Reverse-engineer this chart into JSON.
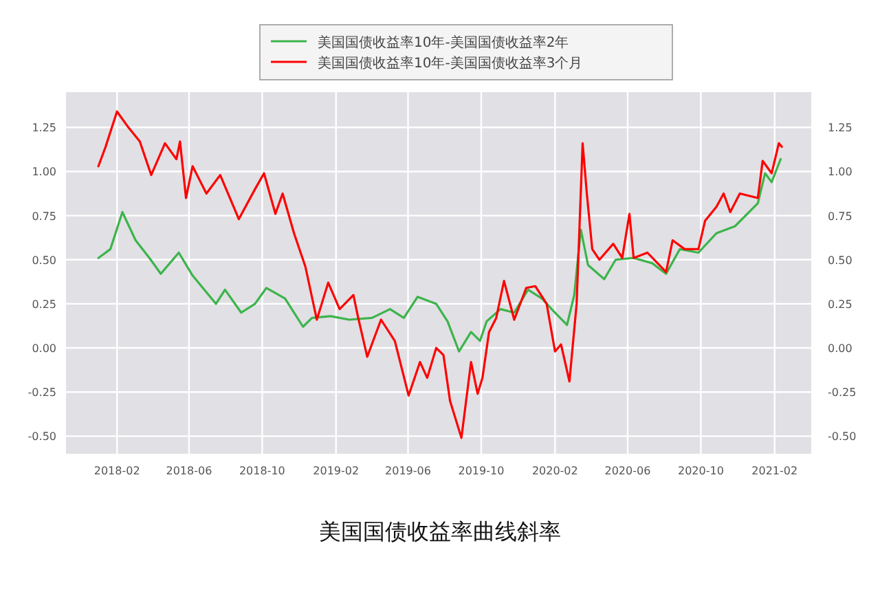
{
  "chart_data": {
    "type": "line",
    "title": "美国国债收益率曲线斜率",
    "legend": "top",
    "grid": true,
    "xlim": [
      "2017-11-08",
      "2021-04-03"
    ],
    "xticks": [
      "2018-02",
      "2018-06",
      "2018-10",
      "2019-02",
      "2019-06",
      "2019-10",
      "2020-02",
      "2020-06",
      "2020-10",
      "2021-02"
    ],
    "ylim": [
      -0.6,
      1.45
    ],
    "yticks": [
      {
        "value": -0.5,
        "label": "-0.50"
      },
      {
        "value": -0.25,
        "label": "-0.25"
      },
      {
        "value": 0,
        "label": "0.00"
      },
      {
        "value": 0.25,
        "label": "0.25"
      },
      {
        "value": 0.5,
        "label": "0.50"
      },
      {
        "value": 0.75,
        "label": "0.75"
      },
      {
        "value": 1,
        "label": "1.00"
      },
      {
        "value": 1.25,
        "label": "1.25"
      }
    ],
    "y2lim": [
      -0.6,
      1.45
    ],
    "y2ticks": [
      {
        "value": -0.5,
        "label": "-0.50"
      },
      {
        "value": -0.25,
        "label": "-0.25"
      },
      {
        "value": 0,
        "label": "0.00"
      },
      {
        "value": 0.25,
        "label": "0.25"
      },
      {
        "value": 0.5,
        "label": "0.50"
      },
      {
        "value": 0.75,
        "label": "0.75"
      },
      {
        "value": 1,
        "label": "1.00"
      },
      {
        "value": 1.25,
        "label": "1.25"
      }
    ],
    "series": [
      {
        "name": "美国国债收益率10年-美国国债收益率2年",
        "color": "#3cb44b",
        "x": [
          "2018-01-01",
          "2018-01-21",
          "2018-02-10",
          "2018-03-04",
          "2018-03-27",
          "2018-04-15",
          "2018-05-15",
          "2018-06-07",
          "2018-07-16",
          "2018-07-31",
          "2018-08-27",
          "2018-09-19",
          "2018-10-08",
          "2018-11-08",
          "2018-12-08",
          "2018-12-23",
          "2019-01-23",
          "2019-02-23",
          "2019-04-02",
          "2019-05-02",
          "2019-05-25",
          "2019-06-17",
          "2019-07-18",
          "2019-08-06",
          "2019-08-25",
          "2019-09-14",
          "2019-09-29",
          "2019-10-10",
          "2019-11-02",
          "2019-11-25",
          "2019-12-18",
          "2020-01-10",
          "2020-01-29",
          "2020-02-21",
          "2020-03-04",
          "2020-03-15",
          "2020-03-27",
          "2020-04-23",
          "2020-05-12",
          "2020-06-11",
          "2020-07-12",
          "2020-08-04",
          "2020-08-27",
          "2020-09-27",
          "2020-10-27",
          "2020-11-27",
          "2021-01-04",
          "2021-01-16",
          "2021-01-27",
          "2021-02-11"
        ],
        "values": [
          0.51,
          0.56,
          0.77,
          0.61,
          0.51,
          0.42,
          0.54,
          0.41,
          0.25,
          0.33,
          0.2,
          0.25,
          0.34,
          0.28,
          0.12,
          0.17,
          0.18,
          0.16,
          0.17,
          0.22,
          0.17,
          0.29,
          0.25,
          0.15,
          -0.02,
          0.09,
          0.04,
          0.15,
          0.22,
          0.2,
          0.33,
          0.28,
          0.21,
          0.13,
          0.3,
          0.67,
          0.47,
          0.39,
          0.5,
          0.51,
          0.48,
          0.42,
          0.56,
          0.54,
          0.65,
          0.69,
          0.82,
          0.99,
          0.94,
          1.07
        ]
      },
      {
        "name": "美国国债收益率10年-美国国债收益率3个月",
        "color": "#ff0000",
        "x": [
          "2018-01-01",
          "2018-01-13",
          "2018-02-01",
          "2018-02-20",
          "2018-03-11",
          "2018-03-30",
          "2018-04-22",
          "2018-05-11",
          "2018-05-17",
          "2018-05-27",
          "2018-06-07",
          "2018-06-30",
          "2018-07-23",
          "2018-08-23",
          "2018-09-19",
          "2018-10-04",
          "2018-10-23",
          "2018-11-04",
          "2018-11-23",
          "2018-12-12",
          "2018-12-31",
          "2019-01-19",
          "2019-02-07",
          "2019-03-02",
          "2019-03-10",
          "2019-03-25",
          "2019-04-17",
          "2019-05-10",
          "2019-06-02",
          "2019-06-21",
          "2019-07-03",
          "2019-07-18",
          "2019-07-30",
          "2019-08-10",
          "2019-08-29",
          "2019-09-14",
          "2019-09-25",
          "2019-10-03",
          "2019-10-14",
          "2019-10-26",
          "2019-11-08",
          "2019-11-25",
          "2019-12-15",
          "2019-12-30",
          "2020-01-18",
          "2020-02-01",
          "2020-02-11",
          "2020-02-25",
          "2020-03-08",
          "2020-03-18",
          "2020-03-25",
          "2020-04-03",
          "2020-04-15",
          "2020-05-08",
          "2020-05-23",
          "2020-06-04",
          "2020-06-11",
          "2020-07-04",
          "2020-08-04",
          "2020-08-15",
          "2020-09-04",
          "2020-09-27",
          "2020-10-08",
          "2020-10-27",
          "2020-11-08",
          "2020-11-19",
          "2020-12-05",
          "2021-01-04",
          "2021-01-12",
          "2021-01-27",
          "2021-02-08",
          "2021-02-13"
        ],
        "values": [
          1.03,
          1.14,
          1.34,
          1.25,
          1.17,
          0.98,
          1.16,
          1.07,
          1.17,
          0.85,
          1.03,
          0.875,
          0.98,
          0.73,
          0.9,
          0.99,
          0.76,
          0.875,
          0.65,
          0.46,
          0.16,
          0.37,
          0.22,
          0.3,
          0.17,
          -0.05,
          0.16,
          0.04,
          -0.27,
          -0.08,
          -0.17,
          0.0,
          -0.04,
          -0.3,
          -0.51,
          -0.08,
          -0.26,
          -0.17,
          0.09,
          0.17,
          0.38,
          0.16,
          0.34,
          0.35,
          0.25,
          -0.02,
          0.02,
          -0.19,
          0.25,
          1.16,
          0.875,
          0.56,
          0.5,
          0.59,
          0.51,
          0.76,
          0.51,
          0.54,
          0.43,
          0.61,
          0.56,
          0.56,
          0.72,
          0.8,
          0.875,
          0.77,
          0.875,
          0.85,
          1.06,
          0.99,
          1.16,
          1.14
        ]
      }
    ]
  }
}
